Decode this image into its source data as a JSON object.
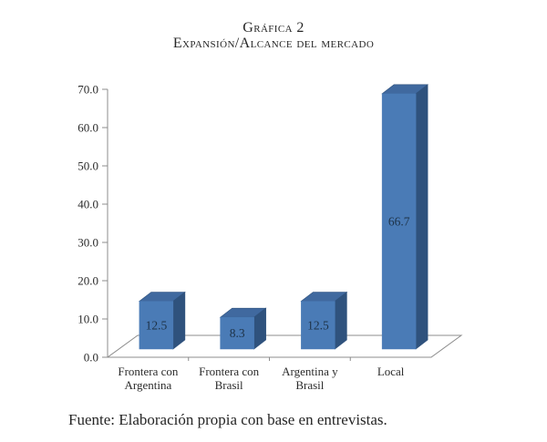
{
  "figure": {
    "source": "Fuente: Elaboración propia con base en entrevistas."
  },
  "chart_data": {
    "type": "bar",
    "style": "3d-column",
    "title": "Gráfica 2",
    "subtitle": "Expansión/Alcance del mercado",
    "categories": [
      "Frontera con Argentina",
      "Frontera con Brasil",
      "Argentina y Brasil",
      "Local"
    ],
    "category_lines": [
      [
        "Frontera con",
        "Argentina"
      ],
      [
        "Frontera con",
        "Brasil"
      ],
      [
        "Argentina y",
        "Brasil"
      ],
      [
        "Local"
      ]
    ],
    "values": [
      12.5,
      8.3,
      12.5,
      66.7
    ],
    "value_labels": [
      "12.5",
      "8.3",
      "12.5",
      "66.7"
    ],
    "ylim": [
      0,
      70
    ],
    "ytick_step": 10,
    "ytick_labels": [
      "0.0",
      "10.0",
      "20.0",
      "30.0",
      "40.0",
      "50.0",
      "60.0",
      "70.0"
    ],
    "grid": false,
    "legend": false,
    "colors": {
      "bar_front": "#4A7BB6",
      "bar_top": "#40699F",
      "bar_side": "#2F527D",
      "axis": "#8C8C8C",
      "value_label": "#1E3348",
      "text": "#2B2B2B"
    }
  }
}
